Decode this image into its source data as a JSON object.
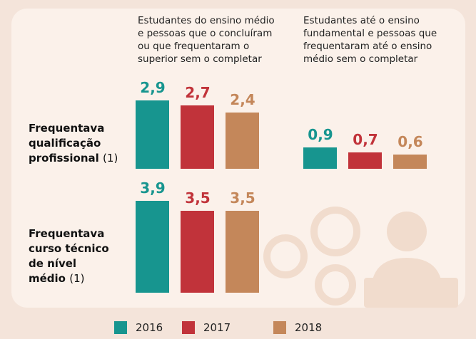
{
  "chart_data": {
    "type": "bar",
    "series": [
      {
        "name": "2016",
        "color": "#17958f"
      },
      {
        "name": "2017",
        "color": "#c1333a"
      },
      {
        "name": "2018",
        "color": "#c4875a"
      }
    ],
    "column_titles": [
      [
        "Estudantes do ensino médio",
        "e pessoas que o concluíram",
        "ou que frequentaram o",
        "superior sem o completar"
      ],
      [
        "Estudantes até o ensino",
        "fundamental e pessoas que",
        "frequentaram até o ensino",
        "médio sem o completar"
      ]
    ],
    "rows": [
      {
        "title_lines": [
          "Frequentava",
          "qualificação",
          "profissional"
        ],
        "note": "(1)",
        "groups": [
          {
            "values": [
              2.9,
              2.7,
              2.4
            ],
            "value_labels": [
              "2,9",
              "2,7",
              "2,4"
            ]
          },
          {
            "values": [
              0.9,
              0.7,
              0.6
            ],
            "value_labels": [
              "0,9",
              "0,7",
              "0,6"
            ]
          }
        ]
      },
      {
        "title_lines": [
          "Frequentava",
          "curso técnico",
          "de nível",
          "médio"
        ],
        "note": "(1)",
        "groups": [
          {
            "values": [
              3.9,
              3.5,
              3.5
            ],
            "value_labels": [
              "3,9",
              "3,5",
              "3,5"
            ]
          }
        ]
      }
    ]
  }
}
